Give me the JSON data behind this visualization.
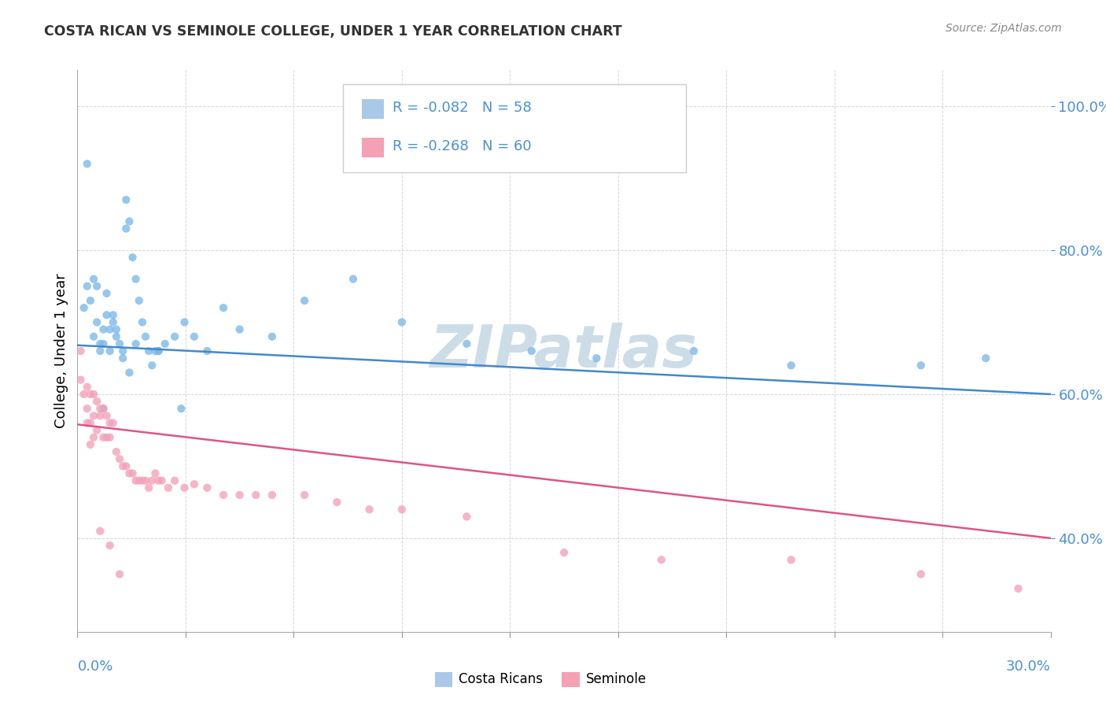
{
  "title": "COSTA RICAN VS SEMINOLE COLLEGE, UNDER 1 YEAR CORRELATION CHART",
  "source": "Source: ZipAtlas.com",
  "ylabel": "College, Under 1 year",
  "xlim": [
    0.0,
    0.3
  ],
  "ylim": [
    0.27,
    1.05
  ],
  "ytick_values": [
    0.4,
    0.6,
    0.8,
    1.0
  ],
  "ytick_labels": [
    "40.0%",
    "60.0%",
    "80.0%",
    "100.0%"
  ],
  "legend_entries": [
    {
      "label": "R = -0.082   N = 58",
      "color": "#aac8e8"
    },
    {
      "label": "R = -0.268   N = 60",
      "color": "#f4a0b5"
    }
  ],
  "watermark": "ZIPatlas",
  "watermark_color": "#ccdde8",
  "blue_scatter_x": [
    0.002,
    0.003,
    0.004,
    0.005,
    0.005,
    0.006,
    0.007,
    0.007,
    0.008,
    0.008,
    0.009,
    0.01,
    0.01,
    0.011,
    0.011,
    0.012,
    0.013,
    0.014,
    0.015,
    0.015,
    0.016,
    0.017,
    0.018,
    0.019,
    0.02,
    0.021,
    0.022,
    0.023,
    0.024,
    0.025,
    0.027,
    0.03,
    0.033,
    0.036,
    0.04,
    0.045,
    0.05,
    0.06,
    0.07,
    0.085,
    0.1,
    0.12,
    0.14,
    0.16,
    0.19,
    0.22,
    0.26,
    0.006,
    0.009,
    0.012,
    0.014,
    0.016,
    0.008,
    0.018,
    0.025,
    0.003,
    0.032,
    0.28
  ],
  "blue_scatter_y": [
    0.72,
    0.75,
    0.73,
    0.76,
    0.68,
    0.7,
    0.67,
    0.66,
    0.69,
    0.67,
    0.71,
    0.69,
    0.66,
    0.7,
    0.71,
    0.69,
    0.67,
    0.66,
    0.87,
    0.83,
    0.84,
    0.79,
    0.76,
    0.73,
    0.7,
    0.68,
    0.66,
    0.64,
    0.66,
    0.66,
    0.67,
    0.68,
    0.7,
    0.68,
    0.66,
    0.72,
    0.69,
    0.68,
    0.73,
    0.76,
    0.7,
    0.67,
    0.66,
    0.65,
    0.66,
    0.64,
    0.64,
    0.75,
    0.74,
    0.68,
    0.65,
    0.63,
    0.58,
    0.67,
    0.66,
    0.92,
    0.58,
    0.65
  ],
  "pink_scatter_x": [
    0.001,
    0.002,
    0.003,
    0.003,
    0.004,
    0.004,
    0.005,
    0.005,
    0.006,
    0.006,
    0.007,
    0.007,
    0.008,
    0.008,
    0.009,
    0.009,
    0.01,
    0.01,
    0.011,
    0.012,
    0.013,
    0.014,
    0.015,
    0.016,
    0.017,
    0.018,
    0.019,
    0.02,
    0.021,
    0.022,
    0.023,
    0.024,
    0.025,
    0.026,
    0.028,
    0.03,
    0.033,
    0.036,
    0.04,
    0.045,
    0.05,
    0.055,
    0.06,
    0.07,
    0.08,
    0.09,
    0.1,
    0.12,
    0.15,
    0.18,
    0.22,
    0.26,
    0.29,
    0.003,
    0.005,
    0.007,
    0.01,
    0.013,
    0.001,
    0.004
  ],
  "pink_scatter_y": [
    0.62,
    0.6,
    0.61,
    0.58,
    0.6,
    0.56,
    0.6,
    0.57,
    0.59,
    0.55,
    0.58,
    0.57,
    0.58,
    0.54,
    0.57,
    0.54,
    0.56,
    0.54,
    0.56,
    0.52,
    0.51,
    0.5,
    0.5,
    0.49,
    0.49,
    0.48,
    0.48,
    0.48,
    0.48,
    0.47,
    0.48,
    0.49,
    0.48,
    0.48,
    0.47,
    0.48,
    0.47,
    0.475,
    0.47,
    0.46,
    0.46,
    0.46,
    0.46,
    0.46,
    0.45,
    0.44,
    0.44,
    0.43,
    0.38,
    0.37,
    0.37,
    0.35,
    0.33,
    0.56,
    0.54,
    0.41,
    0.39,
    0.35,
    0.66,
    0.53
  ],
  "blue_line_y": [
    0.668,
    0.6
  ],
  "pink_line_y": [
    0.558,
    0.4
  ],
  "scatter_alpha": 0.78,
  "scatter_size": 55,
  "blue_dot_color": "#7ab8e8",
  "pink_dot_color": "#f4a0b8",
  "blue_line_color": "#4488cc",
  "pink_line_color": "#dd5588",
  "grid_color": "#cccccc",
  "title_color": "#333333",
  "axis_color": "#4a90d9",
  "bottom_legend": [
    {
      "label": "Costa Ricans",
      "color": "#aac8e8"
    },
    {
      "label": "Seminole",
      "color": "#f4a0b5"
    }
  ]
}
